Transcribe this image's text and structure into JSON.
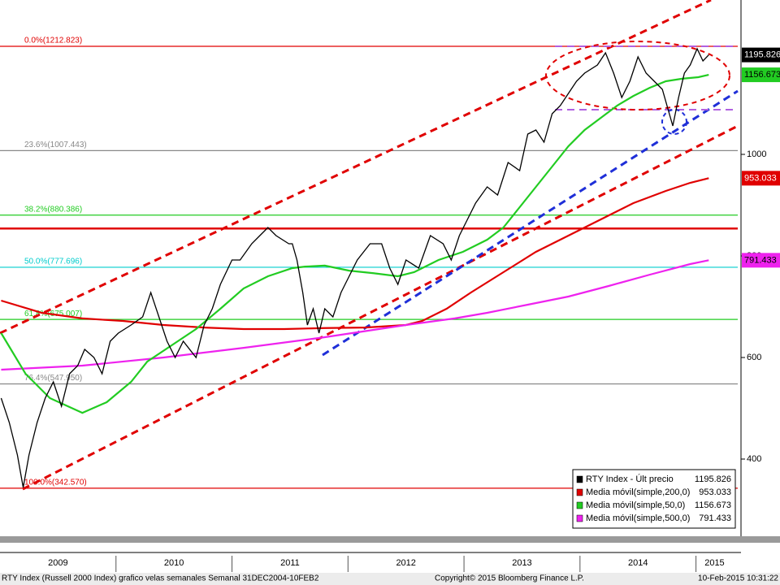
{
  "chart_data": {
    "type": "line",
    "xlim": [
      2009.0,
      2015.36
    ],
    "ylim": [
      248,
      1304
    ],
    "yticks": [
      400,
      600,
      800,
      1000
    ],
    "xticks": [
      {
        "value": 2009.5,
        "label": "2009"
      },
      {
        "value": 2010.5,
        "label": "2010"
      },
      {
        "value": 2011.5,
        "label": "2011"
      },
      {
        "value": 2012.5,
        "label": "2012"
      },
      {
        "value": 2013.5,
        "label": "2013"
      },
      {
        "value": 2014.5,
        "label": "2014"
      },
      {
        "value": 2015.16,
        "label": "2015"
      }
    ],
    "xseparators": [
      2010,
      2011,
      2012,
      2013,
      2014,
      2015
    ],
    "levels": [
      {
        "label": "0.0%(1212.823)",
        "value": 1212.823,
        "color": "#e00000"
      },
      {
        "label": "23.6%(1007.443)",
        "value": 1007.443,
        "color": "#888888"
      },
      {
        "label": "38.2%(880.386)",
        "value": 880.386,
        "color": "#22cc22"
      },
      {
        "label": "50.0%(777.696)",
        "value": 777.696,
        "color": "#00cccc"
      },
      {
        "label": "61.8%(675.007)",
        "value": 675.007,
        "color": "#22cc22"
      },
      {
        "label": "76.4%(547.950)",
        "value": 547.95,
        "color": "#888888"
      },
      {
        "label": "100.0%(342.570)",
        "value": 342.57,
        "color": "#e00000"
      }
    ],
    "hlines": [
      {
        "value": 854,
        "color": "#e00000"
      }
    ],
    "series": [
      {
        "name": "RTY Index - Últ precio",
        "color": "#000000",
        "x": [
          2009.01,
          2009.08,
          2009.15,
          2009.2,
          2009.25,
          2009.32,
          2009.39,
          2009.46,
          2009.53,
          2009.6,
          2009.67,
          2009.73,
          2009.81,
          2009.88,
          2009.95,
          2010.02,
          2010.13,
          2010.23,
          2010.3,
          2010.37,
          2010.44,
          2010.51,
          2010.58,
          2010.69,
          2010.76,
          2010.83,
          2010.9,
          2011.0,
          2011.07,
          2011.17,
          2011.24,
          2011.31,
          2011.38,
          2011.49,
          2011.52,
          2011.56,
          2011.61,
          2011.65,
          2011.7,
          2011.75,
          2011.8,
          2011.87,
          2011.94,
          2012.01,
          2012.08,
          2012.19,
          2012.29,
          2012.36,
          2012.43,
          2012.5,
          2012.61,
          2012.71,
          2012.82,
          2012.89,
          2012.96,
          2013.03,
          2013.1,
          2013.2,
          2013.29,
          2013.38,
          2013.48,
          2013.55,
          2013.62,
          2013.69,
          2013.76,
          2013.83,
          2013.9,
          2013.97,
          2014.04,
          2014.15,
          2014.22,
          2014.29,
          2014.36,
          2014.43,
          2014.5,
          2014.57,
          2014.64,
          2014.71,
          2014.76,
          2014.8,
          2014.85,
          2014.9,
          2014.95,
          2015.01,
          2015.06,
          2015.11
        ],
        "values": [
          520,
          472,
          408,
          344,
          408,
          472,
          520,
          552,
          504,
          568,
          584,
          616,
          600,
          568,
          632,
          648,
          664,
          680,
          728,
          680,
          632,
          600,
          632,
          600,
          664,
          696,
          744,
          792,
          792,
          824,
          840,
          856,
          840,
          824,
          824,
          792,
          728,
          664,
          696,
          648,
          696,
          680,
          728,
          760,
          792,
          824,
          824,
          776,
          744,
          792,
          776,
          840,
          824,
          792,
          840,
          872,
          904,
          936,
          920,
          984,
          968,
          1040,
          1048,
          1024,
          1080,
          1096,
          1120,
          1144,
          1160,
          1176,
          1200,
          1160,
          1112,
          1144,
          1192,
          1160,
          1144,
          1128,
          1088,
          1056,
          1112,
          1160,
          1176,
          1208,
          1184,
          1195.826
        ]
      },
      {
        "name": "Media móvil(simple,200,0)",
        "color": "#e00000",
        "x": [
          2009.01,
          2009.36,
          2009.71,
          2010.06,
          2010.41,
          2010.76,
          2011.1,
          2011.45,
          2011.8,
          2012.15,
          2012.5,
          2012.64,
          2012.85,
          2013.06,
          2013.34,
          2013.62,
          2013.9,
          2014.18,
          2014.46,
          2014.74,
          2014.95,
          2015.11
        ],
        "values": [
          712,
          688,
          677,
          672,
          664,
          659,
          656,
          656,
          658,
          659,
          664,
          672,
          696,
          728,
          768,
          808,
          840,
          872,
          904,
          928,
          944,
          953.033
        ]
      },
      {
        "name": "Media móvil(simple,50,0)",
        "color": "#22cc22",
        "x": [
          2009.01,
          2009.22,
          2009.43,
          2009.71,
          2009.92,
          2010.13,
          2010.27,
          2010.48,
          2010.69,
          2010.9,
          2011.1,
          2011.31,
          2011.52,
          2011.63,
          2011.8,
          2012.01,
          2012.22,
          2012.43,
          2012.57,
          2012.78,
          2012.99,
          2013.2,
          2013.34,
          2013.48,
          2013.62,
          2013.76,
          2013.9,
          2014.04,
          2014.18,
          2014.32,
          2014.46,
          2014.6,
          2014.74,
          2014.88,
          2015.02,
          2015.11
        ],
        "values": [
          648,
          568,
          520,
          491,
          512,
          552,
          592,
          624,
          656,
          696,
          736,
          760,
          776,
          779,
          781,
          771,
          766,
          760,
          768,
          792,
          808,
          832,
          856,
          896,
          936,
          976,
          1016,
          1048,
          1072,
          1096,
          1115,
          1131,
          1144,
          1149,
          1152,
          1156.673
        ]
      },
      {
        "name": "Media móvil(simple,500,0)",
        "color": "#ee22ee",
        "x": [
          2009.01,
          2009.71,
          2010.41,
          2011.1,
          2011.8,
          2012.5,
          2012.92,
          2013.2,
          2013.55,
          2013.9,
          2014.25,
          2014.6,
          2014.95,
          2015.11
        ],
        "values": [
          576,
          584,
          600,
          619,
          640,
          664,
          677,
          688,
          704,
          720,
          741,
          763,
          784,
          791.433
        ]
      }
    ],
    "footnotes": [
      "RTY Index (Russell 2000 Index) grafico velas semanales  Semanal 31DEC2004-10FEB2",
      "Copyright© 2015 Bloomberg Finance L.P.",
      "10-Feb-2015 10:31:22"
    ]
  }
}
